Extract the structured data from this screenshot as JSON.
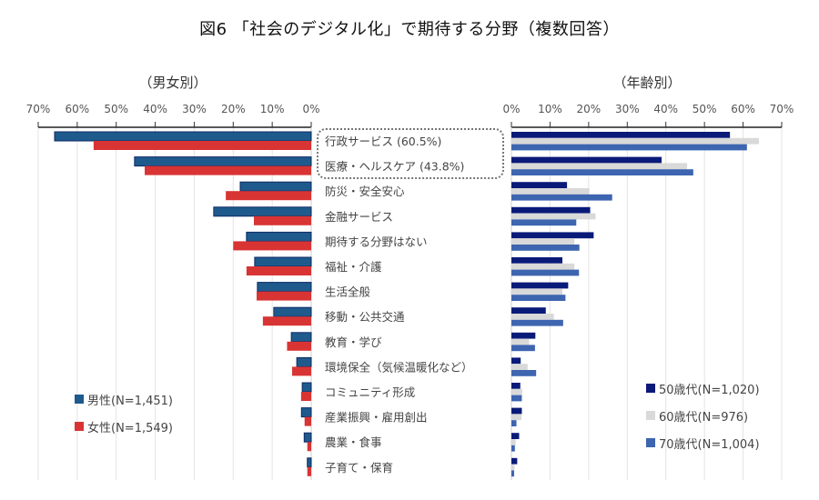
{
  "chart_data": {
    "type": "bar",
    "title": "図6 「社会のデジタル化」で期待する分野（複数回答）",
    "categories": [
      "行政サービス (60.5%)",
      "医療・ヘルスケア (43.8%)",
      "防災・安全安心",
      "金融サービス",
      "期待する分野はない",
      "福祉・介護",
      "生活全般",
      "移動・公共交通",
      "教育・学び",
      "環境保全（気候温暖化など）",
      "コミュニティ形成",
      "産業振興・雇用創出",
      "農業・食事",
      "子育て・保育"
    ],
    "highlighted_categories": [
      0,
      1
    ],
    "panels": [
      {
        "id": "gender",
        "title": "（男女別）",
        "orientation": "horizontal-reversed",
        "xlim": [
          0,
          70
        ],
        "ticks": [
          "70%",
          "60%",
          "50%",
          "40%",
          "30%",
          "20%",
          "10%",
          "0%"
        ],
        "tick_values": [
          70,
          60,
          50,
          40,
          30,
          20,
          10,
          0
        ],
        "grid": true,
        "legend_position": "bottom-left",
        "series": [
          {
            "name": "男性(N=1,451)",
            "color": "#1f5a8c",
            "border": "#0d2a66",
            "values": [
              65.8,
              45.3,
              18.2,
              25.0,
              16.6,
              14.5,
              13.8,
              9.6,
              5.1,
              3.7,
              2.3,
              2.5,
              1.8,
              1.0
            ]
          },
          {
            "name": "女性(N=1,549)",
            "color": "#d93434",
            "border": "#d93434",
            "values": [
              55.8,
              42.7,
              21.9,
              14.7,
              20.0,
              16.6,
              14.0,
              12.4,
              6.2,
              4.9,
              2.6,
              1.7,
              1.0,
              1.0
            ]
          }
        ]
      },
      {
        "id": "age",
        "title": "（年齢別）",
        "orientation": "horizontal",
        "xlim": [
          0,
          70
        ],
        "ticks": [
          "0%",
          "10%",
          "20%",
          "30%",
          "40%",
          "50%",
          "60%",
          "70%"
        ],
        "tick_values": [
          0,
          10,
          20,
          30,
          40,
          50,
          60,
          70
        ],
        "grid": true,
        "legend_position": "bottom-right",
        "series": [
          {
            "name": "50歳代(N=1,020)",
            "color": "#0a1a78",
            "values": [
              56.6,
              38.9,
              14.4,
              20.4,
              21.3,
              13.2,
              14.7,
              8.9,
              6.2,
              2.4,
              2.3,
              2.7,
              2.0,
              1.5
            ]
          },
          {
            "name": "60歳代(N=976)",
            "color": "#d9d9d9",
            "values": [
              64.1,
              45.5,
              20.2,
              21.8,
              16.3,
              16.3,
              13.2,
              11.0,
              4.6,
              4.2,
              2.8,
              2.6,
              1.1,
              0.8
            ]
          },
          {
            "name": "70歳代(N=1,004)",
            "color": "#3d65b0",
            "values": [
              61.0,
              47.1,
              26.1,
              16.8,
              17.6,
              17.5,
              14.0,
              13.4,
              6.1,
              6.4,
              2.7,
              1.3,
              0.9,
              0.7
            ]
          }
        ]
      }
    ]
  }
}
